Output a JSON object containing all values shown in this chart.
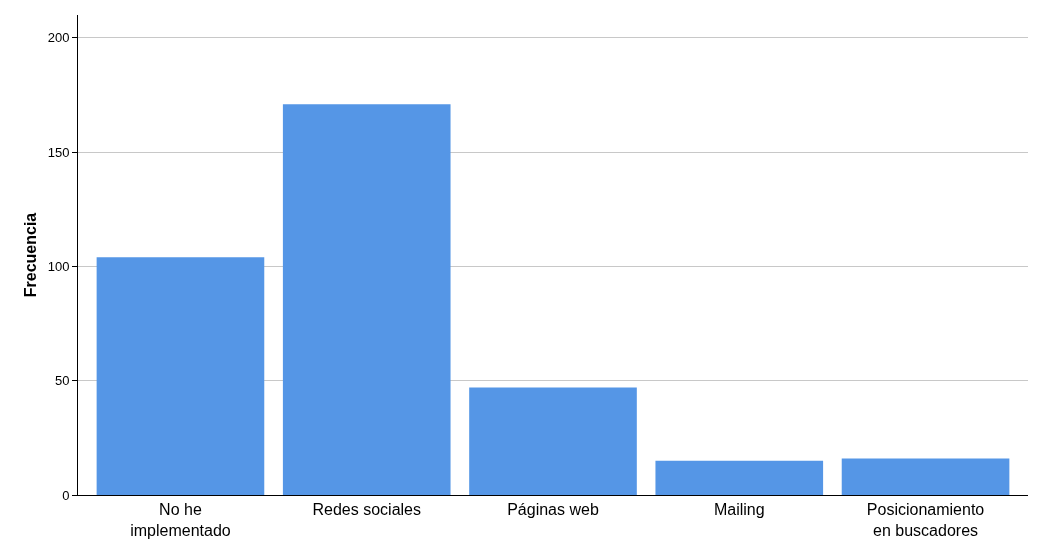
{
  "chart_data": {
    "type": "bar",
    "ylabel": "Frecuencia",
    "categories": [
      "No he\nimplementado",
      "Redes sociales",
      "Páginas web",
      "Mailing",
      "Posicionamiento\nen buscadores"
    ],
    "values": [
      104,
      171,
      47,
      15,
      16
    ],
    "color": "#5596e6",
    "ylim": [
      0,
      210
    ],
    "yticks": [
      0,
      50,
      100,
      150,
      200
    ],
    "grid": "y"
  }
}
